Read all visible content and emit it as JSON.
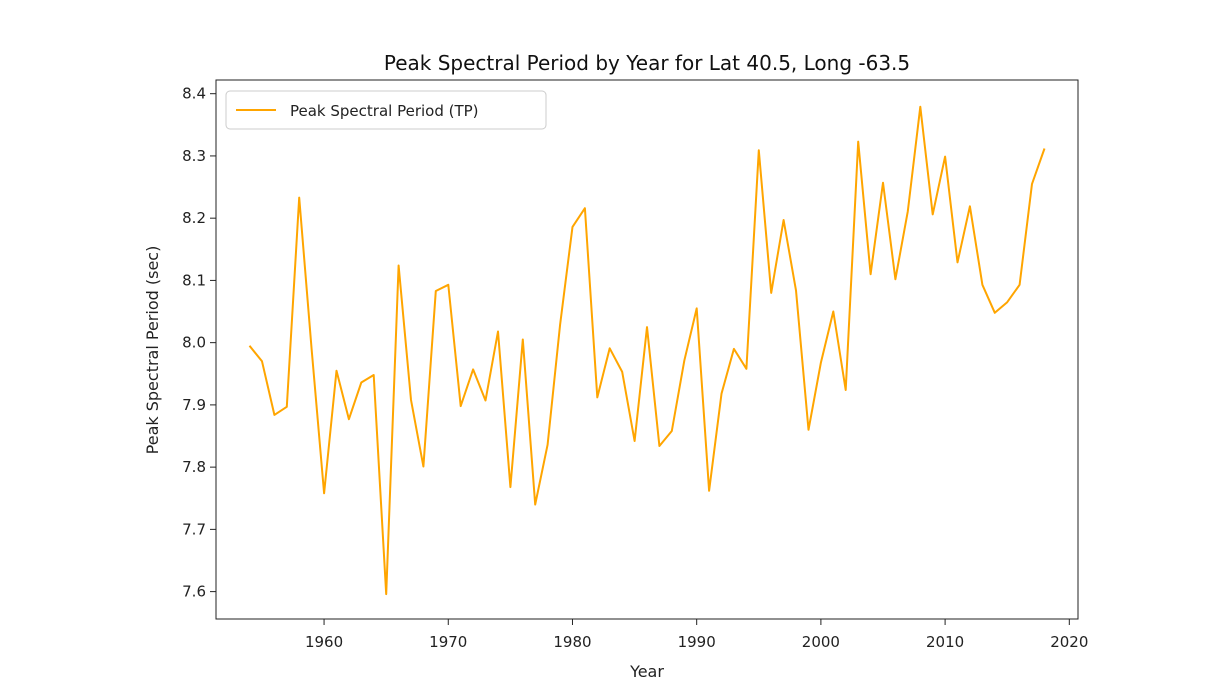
{
  "chart_data": {
    "type": "line",
    "title": "Peak Spectral Period by Year for Lat 40.5, Long -63.5",
    "xlabel": "Year",
    "ylabel": "Peak Spectral Period (sec)",
    "xlim": [
      1951.3,
      2020.7
    ],
    "ylim": [
      7.556,
      8.422
    ],
    "xticks": [
      1960,
      1970,
      1980,
      1990,
      2000,
      2010,
      2020
    ],
    "xtick_labels": [
      "1960",
      "1970",
      "1980",
      "1990",
      "2000",
      "2010",
      "2020"
    ],
    "yticks": [
      7.6,
      7.7,
      7.8,
      7.9,
      8.0,
      8.1,
      8.2,
      8.3,
      8.4
    ],
    "ytick_labels": [
      "7.6",
      "7.7",
      "7.8",
      "7.9",
      "8.0",
      "8.1",
      "8.2",
      "8.3",
      "8.4"
    ],
    "grid": false,
    "legend_position": "top-left",
    "series": [
      {
        "name": "Peak Spectral Period (TP)",
        "color": "#ffa500",
        "x": [
          1954,
          1955,
          1956,
          1957,
          1958,
          1959,
          1960,
          1961,
          1962,
          1963,
          1964,
          1965,
          1966,
          1967,
          1968,
          1969,
          1970,
          1971,
          1972,
          1973,
          1974,
          1975,
          1976,
          1977,
          1978,
          1979,
          1980,
          1981,
          1982,
          1983,
          1984,
          1985,
          1986,
          1987,
          1988,
          1989,
          1990,
          1991,
          1992,
          1993,
          1994,
          1995,
          1996,
          1997,
          1998,
          1999,
          2000,
          2001,
          2002,
          2003,
          2004,
          2005,
          2006,
          2007,
          2008,
          2009,
          2010,
          2011,
          2012,
          2013,
          2014,
          2015,
          2016,
          2017,
          2018
        ],
        "values": [
          7.995,
          7.97,
          7.884,
          7.897,
          8.233,
          7.99,
          7.758,
          7.955,
          7.877,
          7.936,
          7.948,
          7.596,
          8.124,
          7.908,
          7.801,
          8.083,
          8.093,
          7.898,
          7.957,
          7.907,
          8.018,
          7.768,
          8.005,
          7.74,
          7.836,
          8.029,
          8.186,
          8.216,
          7.912,
          7.991,
          7.953,
          7.842,
          8.025,
          7.834,
          7.858,
          7.971,
          8.055,
          7.762,
          7.918,
          7.99,
          7.958,
          8.309,
          8.08,
          8.197,
          8.084,
          7.86,
          7.968,
          8.05,
          7.924,
          8.323,
          8.11,
          8.257,
          8.102,
          8.211,
          8.379,
          8.206,
          8.299,
          8.129,
          8.219,
          8.093,
          8.048,
          8.065,
          8.093,
          8.255,
          8.312
        ]
      }
    ]
  }
}
